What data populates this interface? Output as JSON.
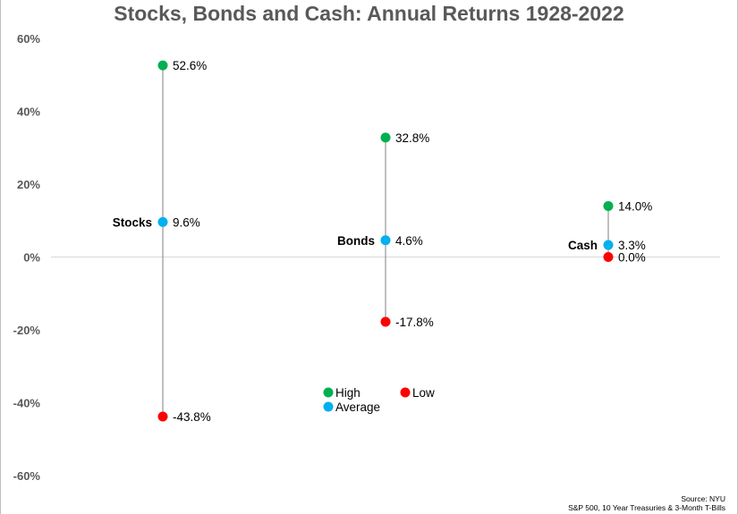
{
  "chart_data": {
    "type": "scatter",
    "title": "Stocks, Bonds and Cash: Annual Returns 1928-2022",
    "ylim": [
      -60,
      60
    ],
    "y_ticks": [
      "60%",
      "40%",
      "20%",
      "0%",
      "-20%",
      "-40%",
      "-60%"
    ],
    "y_tick_values": [
      60,
      40,
      20,
      0,
      -20,
      -40,
      -60
    ],
    "categories": [
      "Stocks",
      "Bonds",
      "Cash"
    ],
    "series": [
      {
        "name": "High",
        "color": "#00b050",
        "values": [
          52.6,
          32.8,
          14.0
        ],
        "labels": [
          "52.6%",
          "32.8%",
          "14.0%"
        ]
      },
      {
        "name": "Average",
        "color": "#00b0f0",
        "values": [
          9.6,
          4.6,
          3.3
        ],
        "labels": [
          "9.6%",
          "4.6%",
          "3.3%"
        ]
      },
      {
        "name": "Low",
        "color": "#ff0000",
        "values": [
          -43.8,
          -17.8,
          0.0
        ],
        "labels": [
          "-43.8%",
          "-17.8%",
          "0.0%"
        ]
      }
    ],
    "legend": [
      {
        "name": "High",
        "color": "#00b050"
      },
      {
        "name": "Low",
        "color": "#ff0000"
      },
      {
        "name": "Average",
        "color": "#00b0f0"
      }
    ],
    "legend_placement": "bottom-center",
    "grid": false,
    "source_line1": "Source: NYU",
    "source_line2": "S&P 500, 10 Year Treasuries & 3-Month T-Bills"
  }
}
